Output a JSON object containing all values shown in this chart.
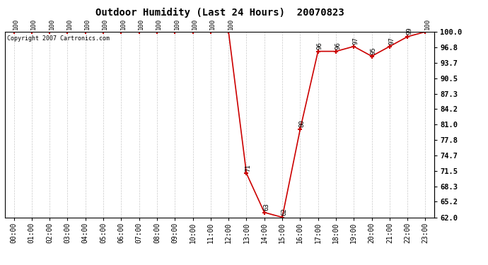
{
  "title": "Outdoor Humidity (Last 24 Hours)  20070823",
  "copyright": "Copyright 2007 Cartronics.com",
  "line_color": "#cc0000",
  "marker": "+",
  "marker_size": 5,
  "marker_linewidth": 1.5,
  "background_color": "#ffffff",
  "grid_color": "#bbbbbb",
  "x_labels": [
    "00:00",
    "01:00",
    "02:00",
    "03:00",
    "04:00",
    "05:00",
    "06:00",
    "07:00",
    "08:00",
    "09:00",
    "10:00",
    "11:00",
    "12:00",
    "13:00",
    "14:00",
    "15:00",
    "16:00",
    "17:00",
    "18:00",
    "19:00",
    "20:00",
    "21:00",
    "22:00",
    "23:00"
  ],
  "x_values": [
    0,
    1,
    2,
    3,
    4,
    5,
    6,
    7,
    8,
    9,
    10,
    11,
    12,
    13,
    14,
    15,
    16,
    17,
    18,
    19,
    20,
    21,
    22,
    23
  ],
  "y_values": [
    100,
    100,
    100,
    100,
    100,
    100,
    100,
    100,
    100,
    100,
    100,
    100,
    100,
    71,
    63,
    62,
    80,
    96,
    96,
    97,
    95,
    97,
    99,
    100
  ],
  "y_ticks": [
    100.0,
    96.8,
    93.7,
    90.5,
    87.3,
    84.2,
    81.0,
    77.8,
    74.7,
    71.5,
    68.3,
    65.2,
    62.0
  ],
  "y_labels": [
    "100.0",
    "96.8",
    "93.7",
    "90.5",
    "87.3",
    "84.2",
    "81.0",
    "77.8",
    "74.7",
    "71.5",
    "68.3",
    "65.2",
    "62.0"
  ],
  "ylim": [
    62.0,
    100.0
  ],
  "point_labels": [
    "100",
    "100",
    "100",
    "100",
    "100",
    "100",
    "100",
    "100",
    "100",
    "100",
    "100",
    "100",
    "100",
    "71",
    "63",
    "62",
    "80",
    "96",
    "96",
    "97",
    "95",
    "97",
    "99",
    "100"
  ]
}
